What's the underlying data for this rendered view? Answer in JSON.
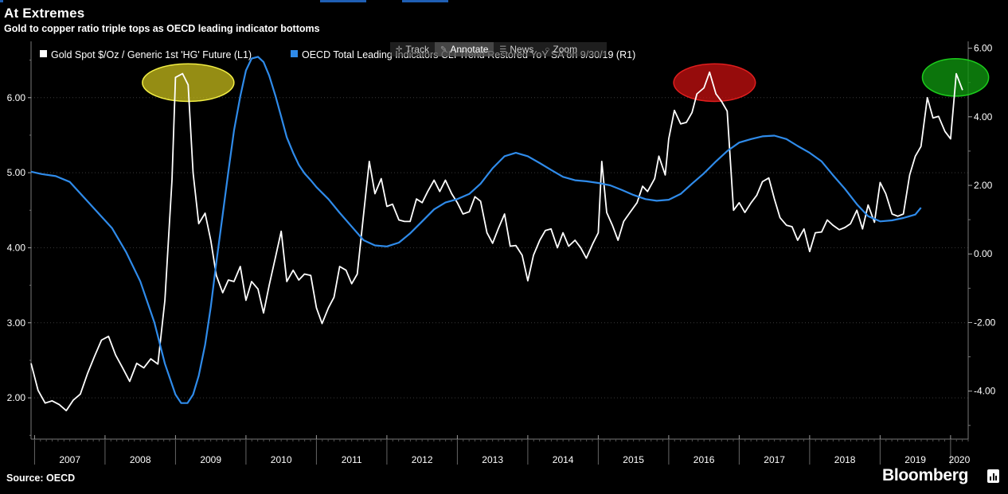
{
  "header": {
    "title": "At Extremes",
    "subtitle": "Gold to copper ratio triple tops as OECD leading indicator bottoms"
  },
  "footer": {
    "source": "Source: OECD",
    "brand": "Bloomberg"
  },
  "toolbar": {
    "items": [
      {
        "label": "Track",
        "icon": "crosshair-icon"
      },
      {
        "label": "Annotate",
        "icon": "pencil-icon"
      },
      {
        "label": "News",
        "icon": "news-icon"
      },
      {
        "label": "Zoom",
        "icon": "zoom-icon"
      }
    ]
  },
  "colors": {
    "background": "#000000",
    "gold_line": "#ffffff",
    "oecd_line": "#2f8bea",
    "grid": "#3a3a3a",
    "accent": "#1f5fb4",
    "yellow_marker": "#f2ee44",
    "red_marker": "#e01e1e",
    "green_marker": "#1ccc1c"
  },
  "chart_data": {
    "type": "line",
    "title": "At Extremes",
    "subtitle": "Gold to copper ratio triple tops as OECD leading indicator bottoms",
    "x_range": [
      2006.95,
      2020.25
    ],
    "x_ticks": [
      2007,
      2008,
      2009,
      2010,
      2011,
      2012,
      2013,
      2014,
      2015,
      2016,
      2017,
      2018,
      2019,
      2020
    ],
    "x_tick_labels": [
      "2007",
      "2008",
      "2009",
      "2010",
      "2011",
      "2012",
      "2013",
      "2014",
      "2015",
      "2016",
      "2017",
      "2018",
      "2019",
      "2020"
    ],
    "y_left": {
      "range": [
        1.45,
        6.75
      ],
      "ticks": [
        2,
        3,
        4,
        5,
        6
      ],
      "tick_labels": [
        "2.00",
        "3.00",
        "4.00",
        "5.00",
        "6.00"
      ],
      "grid": true
    },
    "y_right": {
      "range": [
        -5.4,
        6.2
      ],
      "ticks": [
        -4,
        -2,
        0,
        2,
        4,
        6
      ],
      "tick_labels": [
        "-4.00",
        "-2.00",
        "0.00",
        "2.00",
        "4.00",
        "6.00"
      ]
    },
    "legend_position": "top",
    "series": [
      {
        "name": "Gold Spot $/Oz / Generic 1st 'HG' Future (L1)",
        "axis": "left",
        "color": "#ffffff",
        "points": [
          [
            2006.95,
            2.46
          ],
          [
            2007.05,
            2.1
          ],
          [
            2007.15,
            1.93
          ],
          [
            2007.25,
            1.96
          ],
          [
            2007.35,
            1.91
          ],
          [
            2007.45,
            1.83
          ],
          [
            2007.55,
            1.97
          ],
          [
            2007.65,
            2.05
          ],
          [
            2007.75,
            2.32
          ],
          [
            2007.85,
            2.55
          ],
          [
            2007.95,
            2.77
          ],
          [
            2008.05,
            2.82
          ],
          [
            2008.15,
            2.57
          ],
          [
            2008.25,
            2.4
          ],
          [
            2008.35,
            2.22
          ],
          [
            2008.45,
            2.46
          ],
          [
            2008.55,
            2.4
          ],
          [
            2008.65,
            2.52
          ],
          [
            2008.75,
            2.45
          ],
          [
            2008.85,
            3.3
          ],
          [
            2008.95,
            4.9
          ],
          [
            2009.0,
            6.27
          ],
          [
            2009.1,
            6.32
          ],
          [
            2009.18,
            6.17
          ],
          [
            2009.25,
            5.0
          ],
          [
            2009.33,
            4.32
          ],
          [
            2009.42,
            4.46
          ],
          [
            2009.5,
            4.1
          ],
          [
            2009.58,
            3.63
          ],
          [
            2009.67,
            3.4
          ],
          [
            2009.75,
            3.57
          ],
          [
            2009.83,
            3.55
          ],
          [
            2009.92,
            3.75
          ],
          [
            2010.0,
            3.3
          ],
          [
            2010.08,
            3.55
          ],
          [
            2010.17,
            3.45
          ],
          [
            2010.25,
            3.13
          ],
          [
            2010.33,
            3.5
          ],
          [
            2010.42,
            3.88
          ],
          [
            2010.5,
            4.22
          ],
          [
            2010.58,
            3.55
          ],
          [
            2010.67,
            3.7
          ],
          [
            2010.75,
            3.57
          ],
          [
            2010.83,
            3.65
          ],
          [
            2010.92,
            3.63
          ],
          [
            2011.0,
            3.2
          ],
          [
            2011.08,
            2.99
          ],
          [
            2011.17,
            3.2
          ],
          [
            2011.25,
            3.34
          ],
          [
            2011.33,
            3.75
          ],
          [
            2011.42,
            3.7
          ],
          [
            2011.5,
            3.52
          ],
          [
            2011.58,
            3.65
          ],
          [
            2011.67,
            4.45
          ],
          [
            2011.75,
            5.15
          ],
          [
            2011.83,
            4.72
          ],
          [
            2011.92,
            4.92
          ],
          [
            2012.0,
            4.55
          ],
          [
            2012.08,
            4.58
          ],
          [
            2012.17,
            4.37
          ],
          [
            2012.25,
            4.35
          ],
          [
            2012.33,
            4.35
          ],
          [
            2012.42,
            4.65
          ],
          [
            2012.5,
            4.6
          ],
          [
            2012.58,
            4.75
          ],
          [
            2012.67,
            4.9
          ],
          [
            2012.75,
            4.75
          ],
          [
            2012.83,
            4.9
          ],
          [
            2012.92,
            4.72
          ],
          [
            2013.0,
            4.6
          ],
          [
            2013.08,
            4.45
          ],
          [
            2013.17,
            4.48
          ],
          [
            2013.25,
            4.68
          ],
          [
            2013.33,
            4.62
          ],
          [
            2013.42,
            4.2
          ],
          [
            2013.5,
            4.06
          ],
          [
            2013.58,
            4.25
          ],
          [
            2013.67,
            4.45
          ],
          [
            2013.75,
            4.02
          ],
          [
            2013.83,
            4.03
          ],
          [
            2013.92,
            3.9
          ],
          [
            2014.0,
            3.56
          ],
          [
            2014.08,
            3.9
          ],
          [
            2014.17,
            4.1
          ],
          [
            2014.25,
            4.23
          ],
          [
            2014.33,
            4.25
          ],
          [
            2014.42,
            4.0
          ],
          [
            2014.5,
            4.2
          ],
          [
            2014.58,
            4.02
          ],
          [
            2014.67,
            4.1
          ],
          [
            2014.75,
            4.0
          ],
          [
            2014.83,
            3.86
          ],
          [
            2014.92,
            4.05
          ],
          [
            2015.0,
            4.2
          ],
          [
            2015.05,
            5.15
          ],
          [
            2015.12,
            4.47
          ],
          [
            2015.2,
            4.3
          ],
          [
            2015.28,
            4.1
          ],
          [
            2015.36,
            4.35
          ],
          [
            2015.45,
            4.47
          ],
          [
            2015.55,
            4.6
          ],
          [
            2015.63,
            4.82
          ],
          [
            2015.7,
            4.75
          ],
          [
            2015.8,
            4.92
          ],
          [
            2015.86,
            5.22
          ],
          [
            2015.95,
            4.97
          ],
          [
            2016.0,
            5.45
          ],
          [
            2016.08,
            5.83
          ],
          [
            2016.17,
            5.65
          ],
          [
            2016.25,
            5.67
          ],
          [
            2016.33,
            5.8
          ],
          [
            2016.4,
            6.05
          ],
          [
            2016.5,
            6.13
          ],
          [
            2016.58,
            6.34
          ],
          [
            2016.67,
            6.05
          ],
          [
            2016.75,
            5.95
          ],
          [
            2016.83,
            5.82
          ],
          [
            2016.92,
            4.5
          ],
          [
            2017.0,
            4.6
          ],
          [
            2017.08,
            4.47
          ],
          [
            2017.17,
            4.6
          ],
          [
            2017.25,
            4.7
          ],
          [
            2017.33,
            4.88
          ],
          [
            2017.42,
            4.93
          ],
          [
            2017.5,
            4.65
          ],
          [
            2017.58,
            4.4
          ],
          [
            2017.67,
            4.3
          ],
          [
            2017.75,
            4.28
          ],
          [
            2017.83,
            4.1
          ],
          [
            2017.92,
            4.25
          ],
          [
            2018.0,
            3.95
          ],
          [
            2018.08,
            4.2
          ],
          [
            2018.17,
            4.21
          ],
          [
            2018.25,
            4.37
          ],
          [
            2018.33,
            4.3
          ],
          [
            2018.42,
            4.24
          ],
          [
            2018.5,
            4.27
          ],
          [
            2018.58,
            4.32
          ],
          [
            2018.67,
            4.5
          ],
          [
            2018.75,
            4.25
          ],
          [
            2018.83,
            4.57
          ],
          [
            2018.92,
            4.34
          ],
          [
            2019.0,
            4.87
          ],
          [
            2019.08,
            4.72
          ],
          [
            2019.17,
            4.45
          ],
          [
            2019.25,
            4.42
          ],
          [
            2019.33,
            4.45
          ],
          [
            2019.42,
            4.97
          ],
          [
            2019.5,
            5.22
          ],
          [
            2019.58,
            5.35
          ],
          [
            2019.67,
            6.0
          ],
          [
            2019.75,
            5.73
          ],
          [
            2019.83,
            5.75
          ],
          [
            2019.92,
            5.55
          ],
          [
            2020.0,
            5.45
          ],
          [
            2020.08,
            6.32
          ],
          [
            2020.17,
            6.1
          ]
        ]
      },
      {
        "name": "OECD Total Leading Indicators CLI Trend Restored YoY SA  on 9/30/19 (R1)",
        "axis": "right",
        "color": "#2f8bea",
        "points": [
          [
            2006.95,
            2.4
          ],
          [
            2007.1,
            2.33
          ],
          [
            2007.3,
            2.27
          ],
          [
            2007.5,
            2.1
          ],
          [
            2007.7,
            1.65
          ],
          [
            2007.9,
            1.2
          ],
          [
            2008.1,
            0.75
          ],
          [
            2008.3,
            0.05
          ],
          [
            2008.5,
            -0.8
          ],
          [
            2008.7,
            -2.0
          ],
          [
            2008.85,
            -3.2
          ],
          [
            2009.0,
            -4.1
          ],
          [
            2009.08,
            -4.35
          ],
          [
            2009.17,
            -4.35
          ],
          [
            2009.25,
            -4.1
          ],
          [
            2009.33,
            -3.55
          ],
          [
            2009.42,
            -2.65
          ],
          [
            2009.5,
            -1.55
          ],
          [
            2009.58,
            -0.25
          ],
          [
            2009.67,
            1.15
          ],
          [
            2009.75,
            2.4
          ],
          [
            2009.83,
            3.6
          ],
          [
            2009.92,
            4.6
          ],
          [
            2010.0,
            5.35
          ],
          [
            2010.08,
            5.7
          ],
          [
            2010.17,
            5.75
          ],
          [
            2010.25,
            5.6
          ],
          [
            2010.33,
            5.2
          ],
          [
            2010.42,
            4.6
          ],
          [
            2010.5,
            4.0
          ],
          [
            2010.58,
            3.4
          ],
          [
            2010.67,
            2.95
          ],
          [
            2010.75,
            2.6
          ],
          [
            2010.83,
            2.35
          ],
          [
            2010.92,
            2.15
          ],
          [
            2011.0,
            1.95
          ],
          [
            2011.17,
            1.6
          ],
          [
            2011.33,
            1.2
          ],
          [
            2011.5,
            0.8
          ],
          [
            2011.67,
            0.4
          ],
          [
            2011.83,
            0.25
          ],
          [
            2012.0,
            0.22
          ],
          [
            2012.17,
            0.33
          ],
          [
            2012.33,
            0.6
          ],
          [
            2012.5,
            0.95
          ],
          [
            2012.67,
            1.3
          ],
          [
            2012.83,
            1.5
          ],
          [
            2013.0,
            1.6
          ],
          [
            2013.17,
            1.75
          ],
          [
            2013.33,
            2.05
          ],
          [
            2013.5,
            2.5
          ],
          [
            2013.67,
            2.85
          ],
          [
            2013.83,
            2.95
          ],
          [
            2014.0,
            2.85
          ],
          [
            2014.17,
            2.65
          ],
          [
            2014.33,
            2.45
          ],
          [
            2014.5,
            2.25
          ],
          [
            2014.67,
            2.15
          ],
          [
            2014.83,
            2.12
          ],
          [
            2015.0,
            2.07
          ],
          [
            2015.17,
            2.0
          ],
          [
            2015.33,
            1.87
          ],
          [
            2015.5,
            1.72
          ],
          [
            2015.67,
            1.6
          ],
          [
            2015.83,
            1.55
          ],
          [
            2016.0,
            1.58
          ],
          [
            2016.17,
            1.75
          ],
          [
            2016.33,
            2.05
          ],
          [
            2016.5,
            2.35
          ],
          [
            2016.67,
            2.7
          ],
          [
            2016.83,
            3.0
          ],
          [
            2017.0,
            3.25
          ],
          [
            2017.17,
            3.35
          ],
          [
            2017.33,
            3.43
          ],
          [
            2017.5,
            3.45
          ],
          [
            2017.67,
            3.35
          ],
          [
            2017.83,
            3.15
          ],
          [
            2018.0,
            2.95
          ],
          [
            2018.17,
            2.7
          ],
          [
            2018.33,
            2.3
          ],
          [
            2018.5,
            1.9
          ],
          [
            2018.67,
            1.45
          ],
          [
            2018.83,
            1.1
          ],
          [
            2019.0,
            0.95
          ],
          [
            2019.17,
            0.98
          ],
          [
            2019.33,
            1.05
          ],
          [
            2019.5,
            1.15
          ],
          [
            2019.58,
            1.35
          ]
        ]
      }
    ],
    "annotations": [
      {
        "type": "ellipse",
        "label": "yellow-highlight",
        "x_center": 2009.18,
        "y_center": 6.2,
        "x_radius": 0.65,
        "y_radius": 0.25,
        "color": "#f2ee44"
      },
      {
        "type": "ellipse",
        "label": "red-highlight",
        "x_center": 2016.65,
        "y_center": 6.2,
        "x_radius": 0.58,
        "y_radius": 0.25,
        "color": "#e01e1e"
      },
      {
        "type": "ellipse",
        "label": "green-highlight",
        "x_center": 2020.07,
        "y_center": 6.27,
        "x_radius": 0.47,
        "y_radius": 0.25,
        "color": "#1ccc1c"
      }
    ]
  }
}
